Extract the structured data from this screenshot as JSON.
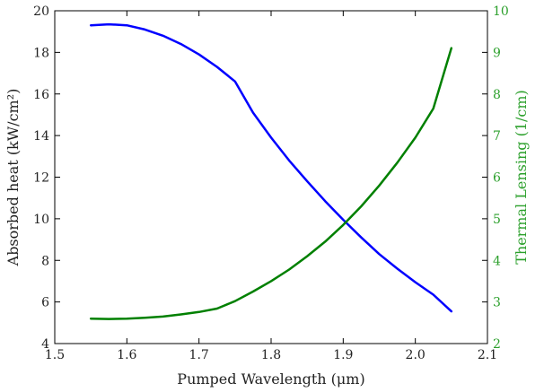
{
  "chart_data": {
    "type": "line",
    "xlabel": "Pumped Wavelength (μm)",
    "ylabel_left": "Absorbed heat (kW/cm²)",
    "ylabel_right": "Thermal Lensing (1/cm)",
    "xlim": [
      1.5,
      2.1
    ],
    "ylim_left": [
      4,
      20
    ],
    "ylim_right": [
      2,
      10
    ],
    "x_ticks": [
      "1.5",
      "1.6",
      "1.7",
      "1.8",
      "1.9",
      "2.0",
      "2.1"
    ],
    "y_ticks_left": [
      "4",
      "6",
      "8",
      "10",
      "12",
      "14",
      "16",
      "18",
      "20"
    ],
    "y_ticks_right": [
      "2",
      "3",
      "4",
      "5",
      "6",
      "7",
      "8",
      "9",
      "10"
    ],
    "grid": false,
    "series": [
      {
        "axis": "left",
        "color": "#0000ff",
        "x": [
          1.55,
          1.575,
          1.6,
          1.625,
          1.65,
          1.675,
          1.7,
          1.725,
          1.75,
          1.775,
          1.8,
          1.825,
          1.85,
          1.875,
          1.9,
          1.925,
          1.95,
          1.975,
          2.0,
          2.025,
          2.05
        ],
        "y": [
          19.3,
          19.35,
          19.3,
          19.1,
          18.8,
          18.4,
          17.9,
          17.3,
          16.6,
          15.1,
          13.9,
          12.8,
          11.8,
          10.85,
          9.95,
          9.1,
          8.3,
          7.6,
          6.95,
          6.35,
          5.55
        ]
      },
      {
        "axis": "right",
        "color": "#008000",
        "x": [
          1.55,
          1.575,
          1.6,
          1.625,
          1.65,
          1.675,
          1.7,
          1.725,
          1.75,
          1.775,
          1.8,
          1.825,
          1.85,
          1.875,
          1.9,
          1.925,
          1.95,
          1.975,
          2.0,
          2.025,
          2.05
        ],
        "y": [
          2.6,
          2.59,
          2.6,
          2.62,
          2.65,
          2.7,
          2.76,
          2.84,
          3.02,
          3.25,
          3.5,
          3.78,
          4.1,
          4.45,
          4.85,
          5.3,
          5.8,
          6.35,
          6.95,
          7.65,
          9.1
        ]
      }
    ]
  },
  "colors": {
    "axis": "#000000",
    "left_axis_text": "#222222",
    "right_axis_text": "#2ca02c"
  }
}
